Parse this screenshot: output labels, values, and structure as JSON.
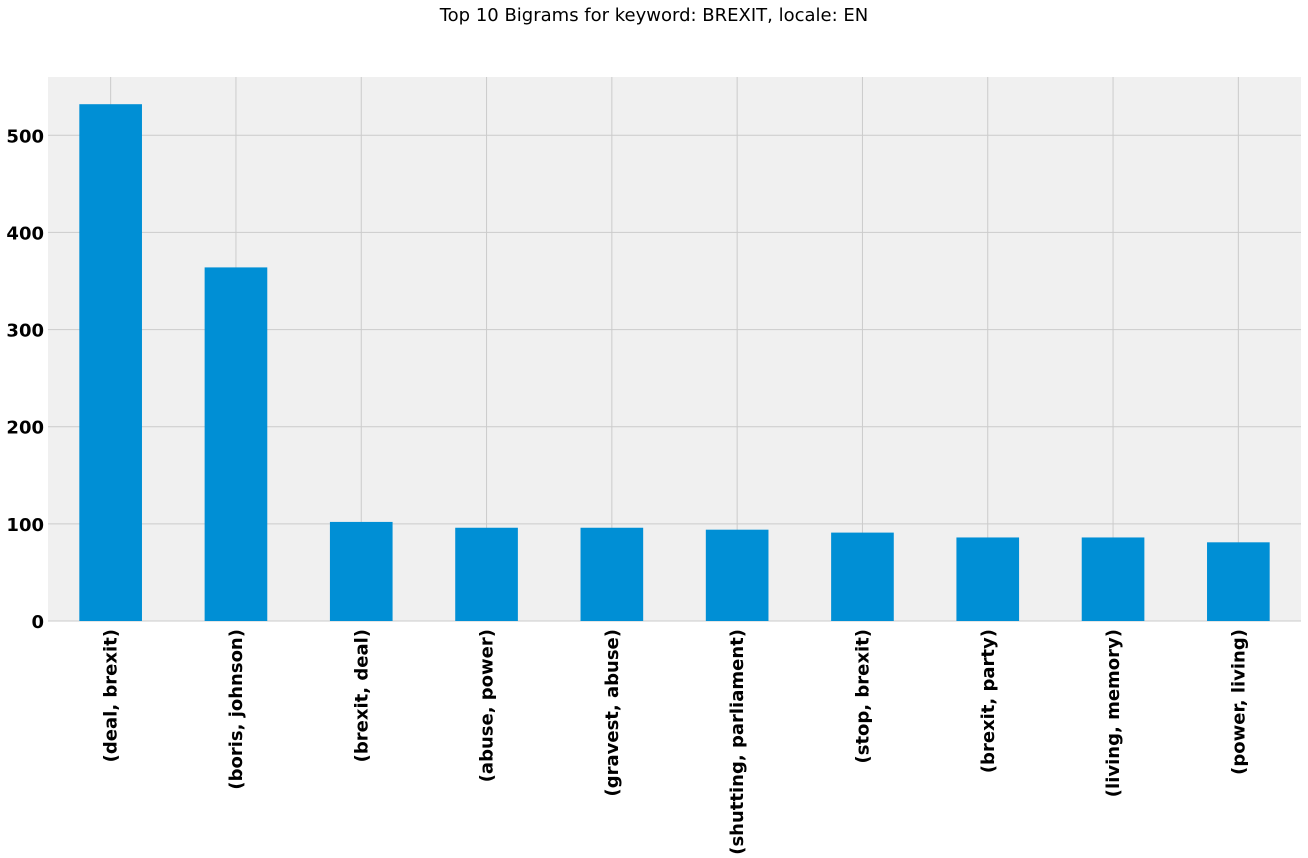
{
  "chart_data": {
    "type": "bar",
    "title": "Top 10 Bigrams for keyword: BREXIT, locale: EN",
    "xlabel": "",
    "ylabel": "",
    "categories": [
      "(deal, brexit)",
      "(boris, johnson)",
      "(brexit, deal)",
      "(abuse, power)",
      "(gravest, abuse)",
      "(shutting, parliament)",
      "(stop, brexit)",
      "(brexit, party)",
      "(living, memory)",
      "(power, living)"
    ],
    "values": [
      532,
      364,
      102,
      96,
      96,
      94,
      91,
      86,
      86,
      81
    ],
    "ylim": [
      0,
      560
    ],
    "yticks": [
      0,
      100,
      200,
      300,
      400,
      500
    ],
    "grid": true,
    "legend": "none",
    "colors": {
      "bar": "#008fd5",
      "plot_background": "#f0f0f0",
      "grid": "#cbcbcb"
    }
  }
}
